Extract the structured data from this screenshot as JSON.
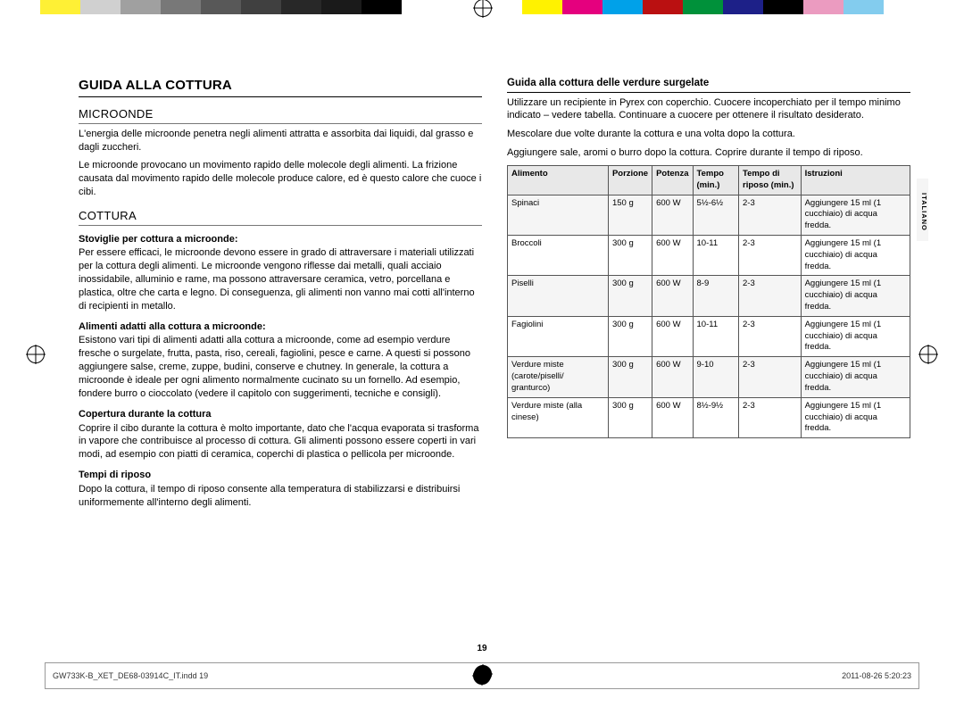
{
  "colorbar": [
    "#ffffff",
    "#fef035",
    "#d0d0d0",
    "#a0a0a0",
    "#787878",
    "#585858",
    "#404040",
    "#282828",
    "#1a1a1a",
    "#000000",
    "#ffffff",
    "#ffffff",
    "#ffffff",
    "#fff200",
    "#e5007e",
    "#00a1e9",
    "#ba1011",
    "#00913a",
    "#1d2088",
    "#000000",
    "#eb9bc0",
    "#83ccee",
    "#ffffff",
    "#ffffff"
  ],
  "title": "GUIDA ALLA COTTURA",
  "h_micro": "MICROONDE",
  "p_micro1": "L'energia delle microonde penetra negli alimenti attratta e assorbita dai liquidi, dal grasso e dagli zuccheri.",
  "p_micro2": "Le microonde provocano un movimento rapido delle molecole degli alimenti. La frizione causata dal movimento rapido delle molecole produce calore, ed è questo calore che cuoce i cibi.",
  "h_cook": "COTTURA",
  "s1h": "Stoviglie per cottura a microonde:",
  "s1p": "Per essere efficaci, le microonde devono essere in grado di attraversare i materiali utilizzati per la cottura degli alimenti. Le microonde vengono riflesse dai metalli, quali acciaio inossidabile, alluminio e rame, ma possono attraversare ceramica, vetro, porcellana e plastica, oltre che carta e legno. Di conseguenza, gli alimenti non vanno mai cotti all'interno di recipienti in metallo.",
  "s2h": "Alimenti adatti alla cottura a microonde:",
  "s2p": "Esistono vari tipi di alimenti adatti alla cottura a microonde, come ad esempio verdure fresche o surgelate, frutta, pasta, riso, cereali, fagiolini, pesce e carne. A questi si possono aggiungere salse, creme, zuppe, budini, conserve e chutney. In generale, la cottura a microonde è ideale per ogni alimento normalmente cucinato su un fornello. Ad esempio, fondere burro o cioccolato (vedere il capitolo con suggerimenti, tecniche e consigli).",
  "s3h": "Copertura durante la cottura",
  "s3p": "Coprire il cibo durante la cottura è molto importante, dato che l'acqua evaporata si trasforma in vapore che contribuisce al processo di cottura. Gli alimenti possono essere coperti in vari modi, ad esempio con piatti di ceramica, coperchi di plastica o pellicola per microonde.",
  "s4h": "Tempi di riposo",
  "s4p": "Dopo la cottura, il tempo di riposo consente alla temperatura di stabilizzarsi e distribuirsi uniformemente all'interno degli alimenti.",
  "right_h": "Guida alla cottura delle verdure surgelate",
  "right_p1": "Utilizzare un recipiente in Pyrex con coperchio. Cuocere incoperchiato per il tempo minimo indicato – vedere tabella. Continuare a cuocere per ottenere il risultato desiderato.",
  "right_p2": "Mescolare due volte durante la cottura e una volta dopo la cottura.",
  "right_p3": "Aggiungere sale, aromi o burro dopo la cottura. Coprire durante il tempo di riposo.",
  "cols": [
    "Alimento",
    "Porzione",
    "Potenza",
    "Tempo (min.)",
    "Tempo di riposo (min.)",
    "Istruzioni"
  ],
  "rows": [
    [
      "Spinaci",
      "150 g",
      "600 W",
      "5½-6½",
      "2-3",
      "Aggiungere 15 ml (1 cucchiaio) di acqua fredda."
    ],
    [
      "Broccoli",
      "300 g",
      "600 W",
      "10-11",
      "2-3",
      "Aggiungere 15 ml (1 cucchiaio) di acqua fredda."
    ],
    [
      "Piselli",
      "300 g",
      "600 W",
      "8-9",
      "2-3",
      "Aggiungere 15 ml (1 cucchiaio) di acqua fredda."
    ],
    [
      "Fagiolini",
      "300 g",
      "600 W",
      "10-11",
      "2-3",
      "Aggiungere 15 ml (1 cucchiaio) di acqua fredda."
    ],
    [
      "Verdure miste (carote/piselli/ granturco)",
      "300 g",
      "600 W",
      "9-10",
      "2-3",
      "Aggiungere 15 ml (1 cucchiaio) di acqua fredda."
    ],
    [
      "Verdure miste (alla cinese)",
      "300 g",
      "600 W",
      "8½-9½",
      "2-3",
      "Aggiungere 15 ml (1 cucchiaio) di acqua fredda."
    ]
  ],
  "lang": "ITALIANO",
  "pagenum": "19",
  "foot_left": "GW733K-B_XET_DE68-03914C_IT.indd   19",
  "foot_right": "2011-08-26   5:20:23"
}
